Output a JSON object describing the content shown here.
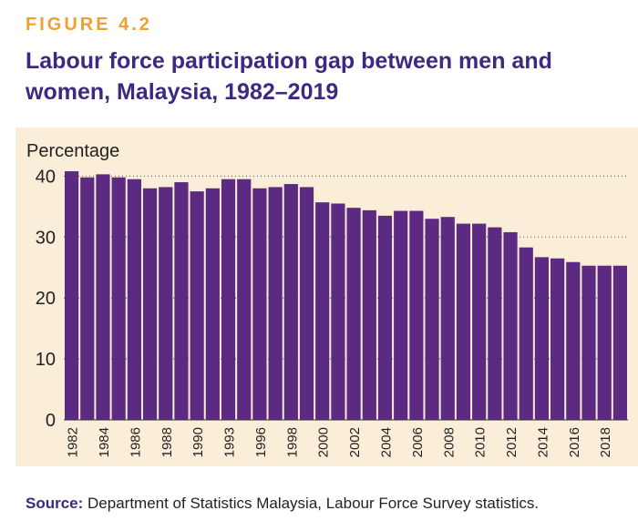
{
  "figure": {
    "label": "FIGURE 4.2",
    "title": "Labour force participation gap between men and women, Malaysia, 1982–2019"
  },
  "source": {
    "label": "Source:",
    "text": " Department of Statistics Malaysia, Labour Force Survey statistics."
  },
  "colors": {
    "bar": "#5c2a82",
    "panel": "#fbeed8",
    "title": "#3d2a80",
    "figure_label": "#f0a030"
  },
  "chart_data": {
    "type": "bar",
    "title": "Labour force participation gap between men and women, Malaysia, 1982–2019",
    "ylabel": "Percentage",
    "xlabel": "",
    "ylim": [
      0,
      42
    ],
    "yticks": [
      0,
      10,
      20,
      30,
      40
    ],
    "grid": "horizontal dotted",
    "categories": [
      "1982",
      "1983",
      "1984",
      "1985",
      "1986",
      "1987",
      "1988",
      "1989",
      "1990",
      "1992",
      "1993",
      "1995",
      "1996",
      "1997",
      "1998",
      "1999",
      "2000",
      "2001",
      "2002",
      "2003",
      "2004",
      "2005",
      "2006",
      "2007",
      "2008",
      "2009",
      "2010",
      "2011",
      "2012",
      "2013",
      "2014",
      "2015",
      "2016",
      "2017",
      "2018",
      "2019"
    ],
    "tick_labels": [
      "1982",
      "1984",
      "1986",
      "1988",
      "1990",
      "1993",
      "1996",
      "1998",
      "2000",
      "2002",
      "2004",
      "2006",
      "2008",
      "2010",
      "2012",
      "2014",
      "2016",
      "2018"
    ],
    "values": [
      40.8,
      39.8,
      40.3,
      39.8,
      39.5,
      38.0,
      38.2,
      39.0,
      37.5,
      38.0,
      39.5,
      39.5,
      38.0,
      38.2,
      38.7,
      38.2,
      35.7,
      35.5,
      34.8,
      34.4,
      33.5,
      34.3,
      34.3,
      33.0,
      33.3,
      32.2,
      32.2,
      31.6,
      30.8,
      28.3,
      26.7,
      26.5,
      25.9,
      25.3,
      25.3,
      25.3
    ]
  }
}
